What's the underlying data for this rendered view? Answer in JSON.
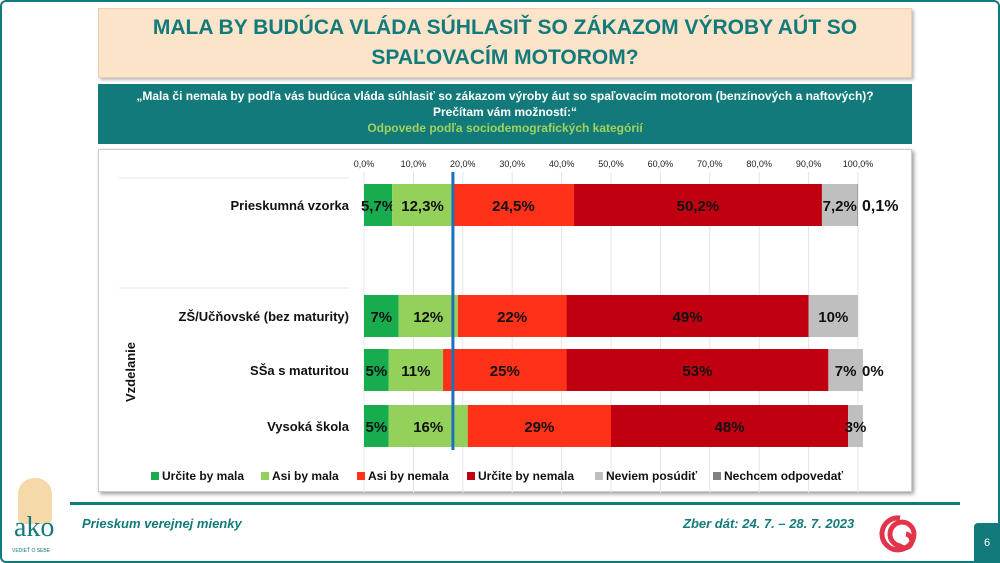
{
  "title": "MALA BY BUDÚCA VLÁDA SÚHLASIŤ SO ZÁKAZOM VÝROBY AÚT SO SPAĽOVACÍM MOTOROM?",
  "question": {
    "line1": "„Mala či nemala by podľa vás budúca vláda súhlasiť so zákazom výroby áut so spaľovacím motorom (benzínových a naftových)?",
    "line2": "Prečítam vám možností:“",
    "subtitle": "Odpovede podľa sociodemografických kategórií"
  },
  "chart_data": {
    "type": "bar",
    "stacked": true,
    "orientation": "horizontal",
    "xlim": [
      0,
      100
    ],
    "ticks": [
      "0,0%",
      "10,0%",
      "20,0%",
      "30,0%",
      "40,0%",
      "50,0%",
      "60,0%",
      "70,0%",
      "80,0%",
      "90,0%",
      "100,0%"
    ],
    "reference_line": 18,
    "group_label": "Vzdelanie",
    "legend_position": "bottom",
    "series": [
      {
        "name": "Určite by mala",
        "color": "#17ad4f"
      },
      {
        "name": "Asi by mala",
        "color": "#94d15a"
      },
      {
        "name": "Asi by nemala",
        "color": "#ff3118"
      },
      {
        "name": "Určite by nemala",
        "color": "#c00010"
      },
      {
        "name": "Neviem posúdiť",
        "color": "#bfbfbf"
      },
      {
        "name": "Nechcem odpovedať",
        "color": "#808080"
      }
    ],
    "categories": [
      {
        "label": "Prieskumná vzorka",
        "values": [
          5.7,
          12.3,
          24.5,
          50.2,
          7.2,
          0.1
        ],
        "labels": [
          "5,7%",
          "12,3%",
          "24,5%",
          "50,2%",
          "7,2%",
          "0,1%"
        ]
      },
      {
        "label": "ZŠ/Učňovské (bez maturity)",
        "values": [
          7,
          12,
          22,
          49,
          10,
          0
        ],
        "labels": [
          "7%",
          "12%",
          "22%",
          "49%",
          "10%",
          ""
        ]
      },
      {
        "label": "SŠa s maturitou",
        "values": [
          5,
          11,
          25,
          53,
          7,
          0
        ],
        "labels": [
          "5%",
          "11%",
          "25%",
          "53%",
          "7%",
          "0%"
        ]
      },
      {
        "label": "Vysoká škola",
        "values": [
          5,
          16,
          29,
          48,
          3,
          0
        ],
        "labels": [
          "5%",
          "16%",
          "29%",
          "48%",
          "3%",
          ""
        ]
      }
    ]
  },
  "footer": {
    "left": "Prieskum verejnej mienky",
    "right": "Zber dát: 24. 7. – 28. 7. 2023",
    "page": "6",
    "logo": "ako",
    "logo_tag": "VEDIEŤ O SEBE"
  }
}
